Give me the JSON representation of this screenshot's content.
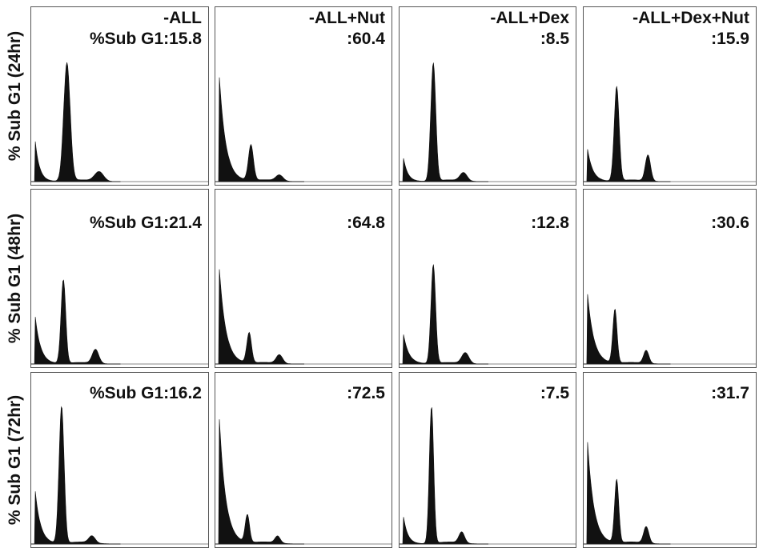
{
  "chart_data": {
    "type": "area",
    "columns": [
      "-ALL",
      "-ALL+Nut",
      "-ALL+Dex",
      "-ALL+Dex+Nut"
    ],
    "rows": [
      "% Sub G1 (24hr)",
      "% Sub G1 (48hr)",
      "% Sub G1 (72hr)"
    ],
    "value_prefix": "%Sub G1:",
    "panels": [
      [
        {
          "label": "%Sub G1:15.8",
          "sub_g1": 15.8,
          "peaks": [
            [
              0.02,
              0.38,
              0.008
            ],
            [
              0.2,
              1.0,
              0.018
            ],
            [
              0.38,
              0.08,
              0.025
            ]
          ]
        },
        {
          "label": ":60.4",
          "sub_g1": 60.4,
          "peaks": [
            [
              0.02,
              0.95,
              0.012
            ],
            [
              0.2,
              0.3,
              0.014
            ],
            [
              0.36,
              0.05,
              0.02
            ]
          ]
        },
        {
          "label": ":8.5",
          "sub_g1": 8.5,
          "peaks": [
            [
              0.02,
              0.22,
              0.008
            ],
            [
              0.19,
              1.0,
              0.014
            ],
            [
              0.36,
              0.07,
              0.02
            ]
          ]
        },
        {
          "label": ":15.9",
          "sub_g1": 15.9,
          "peaks": [
            [
              0.02,
              0.3,
              0.01
            ],
            [
              0.19,
              0.8,
              0.014
            ],
            [
              0.37,
              0.22,
              0.015
            ]
          ]
        }
      ],
      [
        {
          "label": "%Sub G1:21.4",
          "sub_g1": 21.4,
          "peaks": [
            [
              0.02,
              0.48,
              0.01
            ],
            [
              0.18,
              0.78,
              0.013
            ],
            [
              0.36,
              0.13,
              0.018
            ]
          ]
        },
        {
          "label": ":64.8",
          "sub_g1": 64.8,
          "peaks": [
            [
              0.02,
              0.95,
              0.012
            ],
            [
              0.19,
              0.28,
              0.013
            ],
            [
              0.36,
              0.08,
              0.018
            ]
          ]
        },
        {
          "label": ":12.8",
          "sub_g1": 12.8,
          "peaks": [
            [
              0.02,
              0.3,
              0.01
            ],
            [
              0.19,
              0.92,
              0.013
            ],
            [
              0.37,
              0.1,
              0.02
            ]
          ]
        },
        {
          "label": ":30.6",
          "sub_g1": 30.6,
          "peaks": [
            [
              0.02,
              0.7,
              0.012
            ],
            [
              0.18,
              0.5,
              0.012
            ],
            [
              0.36,
              0.12,
              0.015
            ]
          ]
        }
      ],
      [
        {
          "label": "%Sub G1:16.2",
          "sub_g1": 16.2,
          "peaks": [
            [
              0.02,
              0.42,
              0.01
            ],
            [
              0.17,
              1.0,
              0.014
            ],
            [
              0.34,
              0.05,
              0.018
            ]
          ]
        },
        {
          "label": ":72.5",
          "sub_g1": 72.5,
          "peaks": [
            [
              0.02,
              0.98,
              0.012
            ],
            [
              0.18,
              0.2,
              0.012
            ],
            [
              0.35,
              0.05,
              0.015
            ]
          ]
        },
        {
          "label": ":7.5",
          "sub_g1": 7.5,
          "peaks": [
            [
              0.02,
              0.22,
              0.008
            ],
            [
              0.18,
              1.0,
              0.012
            ],
            [
              0.35,
              0.08,
              0.016
            ]
          ]
        },
        {
          "label": ":31.7",
          "sub_g1": 31.7,
          "peaks": [
            [
              0.02,
              0.8,
              0.012
            ],
            [
              0.19,
              0.46,
              0.012
            ],
            [
              0.36,
              0.12,
              0.015
            ]
          ]
        }
      ]
    ]
  }
}
